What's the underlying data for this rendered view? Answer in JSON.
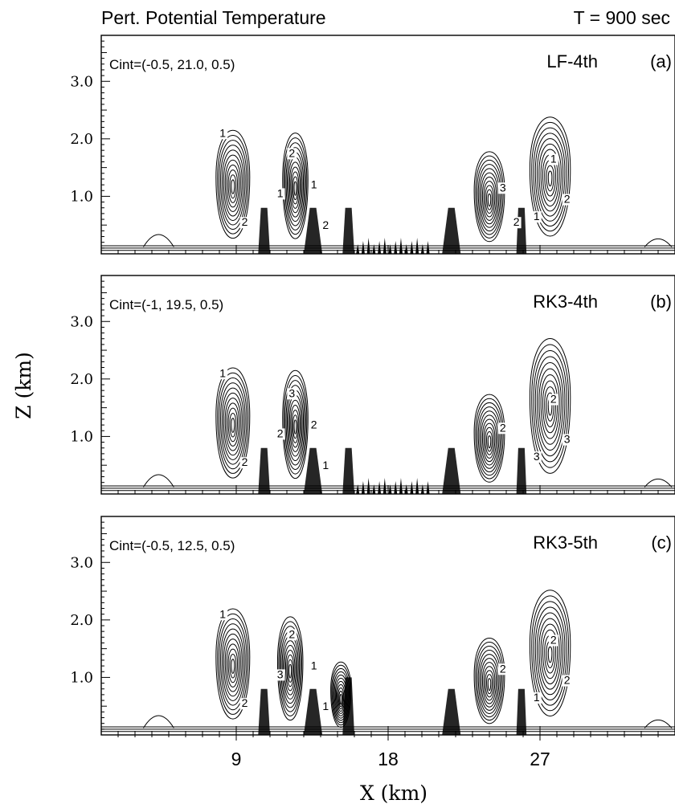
{
  "figure": {
    "title": "Pert. Potential Temperature",
    "time_label": "T = 900 sec"
  },
  "chart_data": [
    {
      "type": "contour",
      "panel_label": "LF-4th",
      "panel_tag": "(a)",
      "cint": "Cint=(-0.5, 21.0, 0.5)",
      "xlabel": "",
      "ylabel": "",
      "xlim": [
        1,
        35
      ],
      "ylim": [
        0,
        3.8
      ],
      "yticks": [
        "1.0",
        "2.0",
        "3.0"
      ],
      "xticks": [],
      "contour_labels": [
        "1",
        "2",
        "1",
        "2",
        "1",
        "2",
        "3",
        "1",
        "1",
        "2",
        "2"
      ],
      "thermals": [
        {
          "x": 8.8,
          "top": 2.3,
          "w": 2.0
        },
        {
          "x": 12.5,
          "top": 2.25,
          "w": 1.5
        },
        {
          "x": 24.0,
          "top": 1.9,
          "w": 1.8
        },
        {
          "x": 27.6,
          "top": 2.55,
          "w": 2.4
        }
      ]
    },
    {
      "type": "contour",
      "panel_label": "RK3-4th",
      "panel_tag": "(b)",
      "cint": "Cint=(-1, 19.5, 0.5)",
      "xlabel": "",
      "ylabel": "Z (km)",
      "xlim": [
        1,
        35
      ],
      "ylim": [
        0,
        3.8
      ],
      "yticks": [
        "1.0",
        "2.0",
        "3.0"
      ],
      "xticks": [],
      "contour_labels": [
        "1",
        "2",
        "2",
        "3",
        "2",
        "1",
        "2",
        "2",
        "3",
        "3"
      ],
      "thermals": [
        {
          "x": 8.8,
          "top": 2.35,
          "w": 2.0
        },
        {
          "x": 12.5,
          "top": 2.3,
          "w": 1.5
        },
        {
          "x": 24.0,
          "top": 1.85,
          "w": 1.8
        },
        {
          "x": 27.6,
          "top": 2.9,
          "w": 2.4
        }
      ]
    },
    {
      "type": "contour",
      "panel_label": "RK3-5th",
      "panel_tag": "(c)",
      "cint": "Cint=(-0.5, 12.5, 0.5)",
      "xlabel": "X (km)",
      "ylabel": "",
      "xlim": [
        1,
        35
      ],
      "ylim": [
        0,
        3.8
      ],
      "yticks": [
        "1.0",
        "2.0",
        "3.0"
      ],
      "xticks": [
        "9",
        "18",
        "27"
      ],
      "contour_labels": [
        "1",
        "2",
        "3",
        "2",
        "1",
        "1",
        "2",
        "2",
        "1",
        "2"
      ],
      "thermals": [
        {
          "x": 8.8,
          "top": 2.35,
          "w": 2.0
        },
        {
          "x": 12.2,
          "top": 2.2,
          "w": 1.5
        },
        {
          "x": 15.2,
          "top": 1.35,
          "w": 1.2
        },
        {
          "x": 24.0,
          "top": 1.8,
          "w": 1.8
        },
        {
          "x": 27.6,
          "top": 2.7,
          "w": 2.4
        }
      ]
    }
  ]
}
